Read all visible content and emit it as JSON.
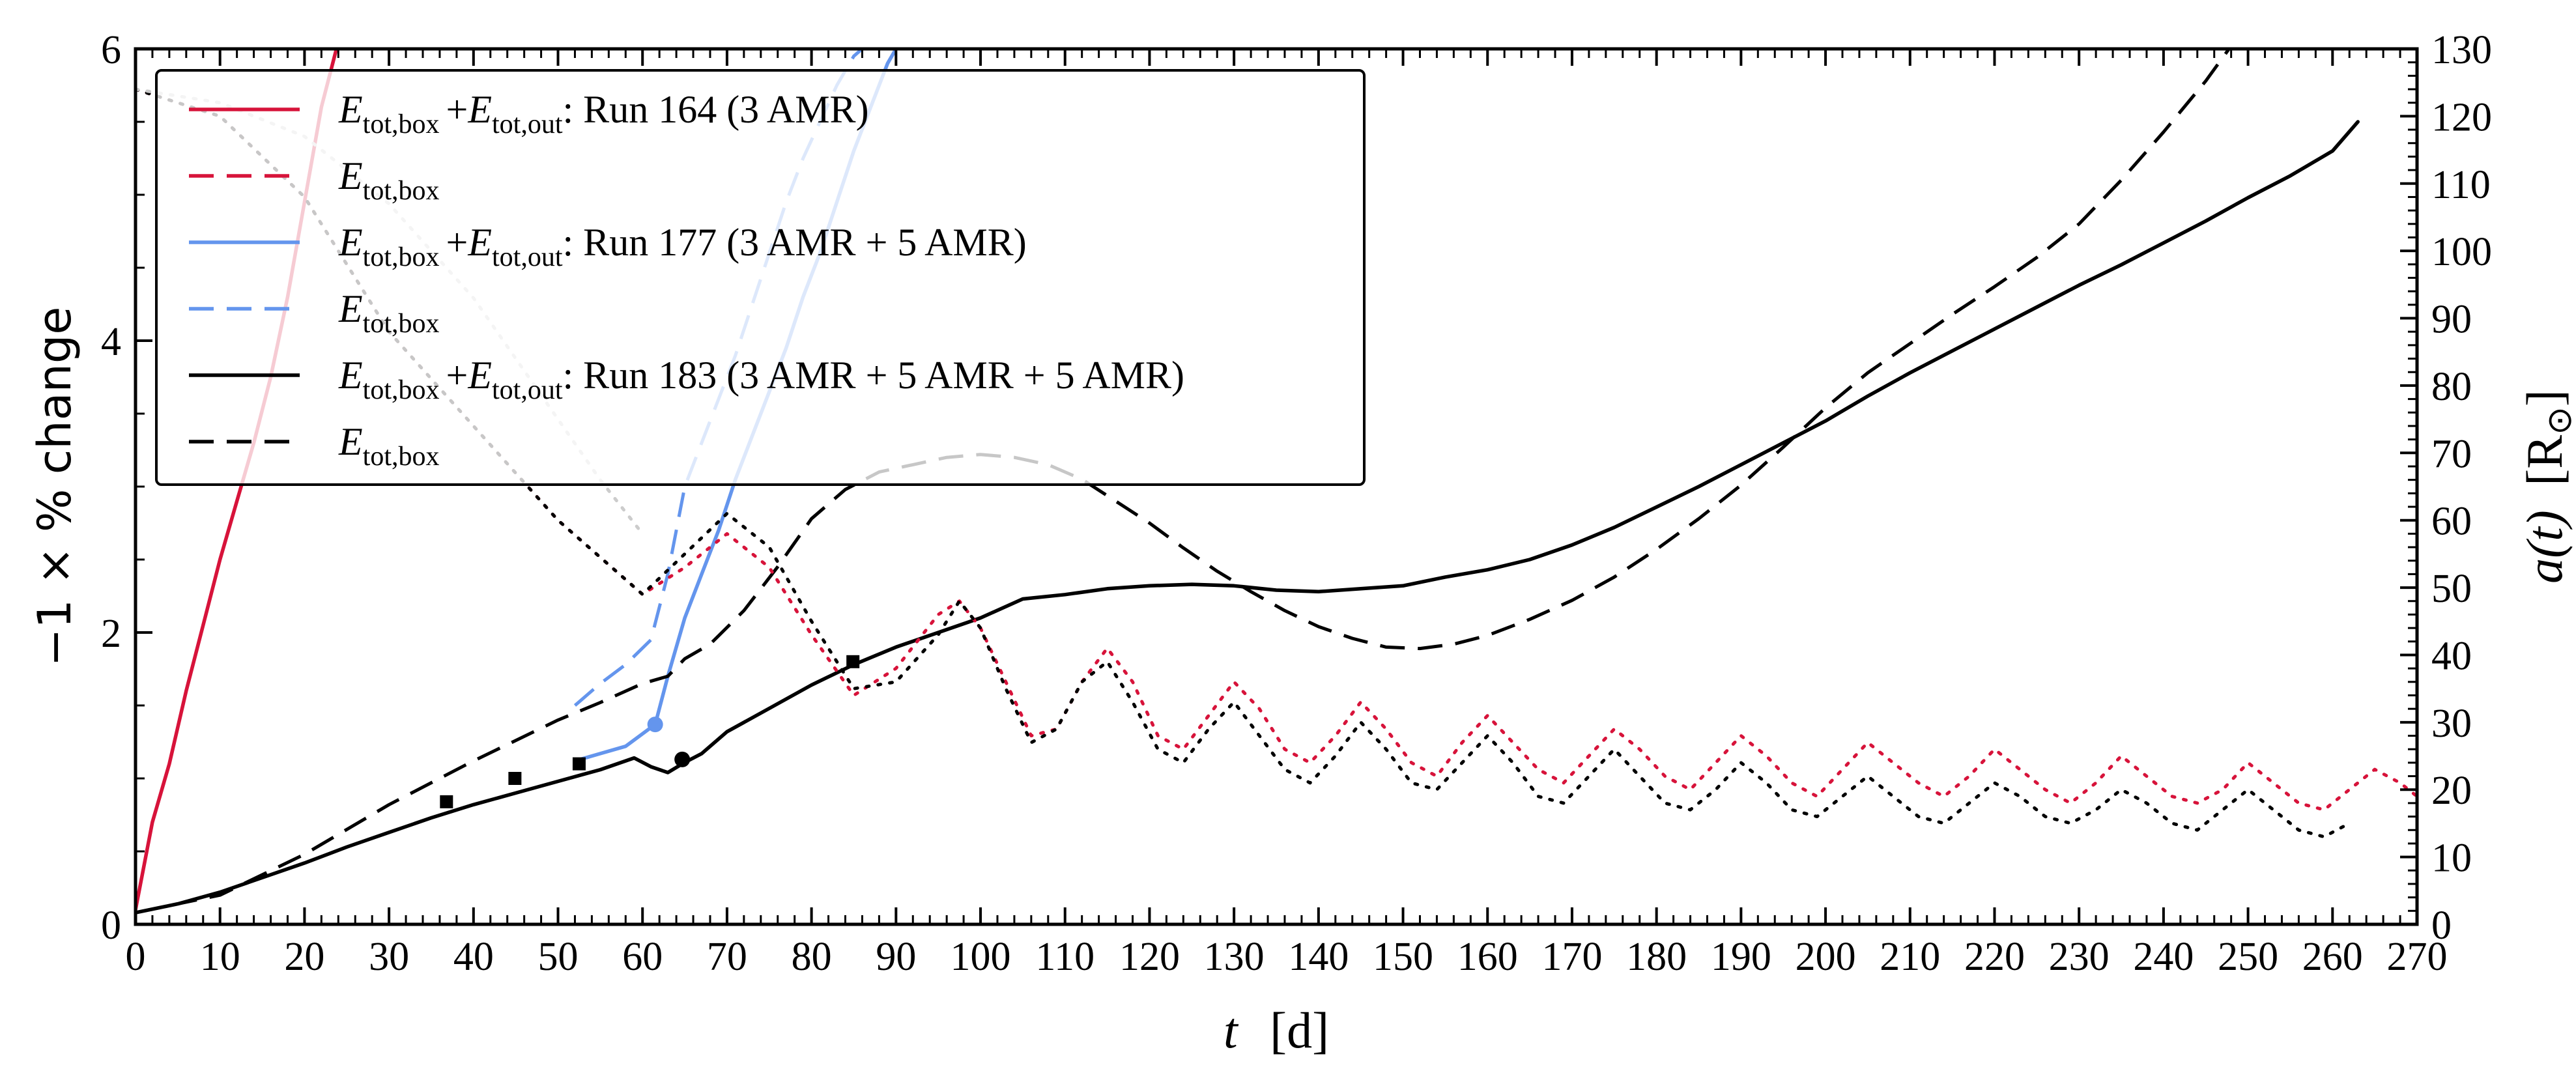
{
  "chart_data": {
    "type": "line",
    "xlabel_var": "t",
    "xlabel_unit": "[d]",
    "ylabel_left": "−1 × % change",
    "ylabel_right_var": "a(t)",
    "ylabel_right_unit": "[R",
    "ylabel_right_unit_symbol": "⊙",
    "ylabel_right_unit_close": "]",
    "xlim": [
      0,
      270
    ],
    "ylim_left": [
      0,
      6
    ],
    "ylim_right": [
      0,
      130
    ],
    "x_ticks": [
      "0",
      "10",
      "20",
      "30",
      "40",
      "50",
      "60",
      "70",
      "80",
      "90",
      "100",
      "110",
      "120",
      "130",
      "140",
      "150",
      "160",
      "170",
      "180",
      "190",
      "200",
      "210",
      "220",
      "230",
      "240",
      "250",
      "260",
      "270"
    ],
    "y_left_ticks": [
      "0",
      "2",
      "4",
      "6"
    ],
    "y_right_ticks": [
      "0",
      "10",
      "20",
      "30",
      "40",
      "50",
      "60",
      "70",
      "80",
      "90",
      "100",
      "110",
      "120",
      "130"
    ],
    "legend": {
      "location": "upper left",
      "entries": [
        {
          "style": "solid",
          "color": "#d7133a",
          "term1": "E",
          "sub1": "tot,box",
          "plus": "+",
          "term2": "E",
          "sub2": "tot,out",
          "text": ": Run 164 (3 AMR)"
        },
        {
          "style": "dashed",
          "color": "#d7133a",
          "term1": "E",
          "sub1": "tot,box"
        },
        {
          "style": "solid",
          "color": "#6495ed",
          "term1": "E",
          "sub1": "tot,box",
          "plus": "+",
          "term2": "E",
          "sub2": "tot,out",
          "text": ": Run 177 (3 AMR + 5 AMR)"
        },
        {
          "style": "dashed",
          "color": "#6495ed",
          "term1": "E",
          "sub1": "tot,box"
        },
        {
          "style": "solid",
          "color": "#000000",
          "term1": "E",
          "sub1": "tot,box",
          "plus": "+",
          "term2": "E",
          "sub2": "tot,out",
          "text": ": Run 183 (3 AMR + 5 AMR + 5 AMR)"
        },
        {
          "style": "dashed",
          "color": "#000000",
          "term1": "E",
          "sub1": "tot,box"
        }
      ]
    },
    "series": [
      {
        "axis": "left",
        "color": "#d7133a",
        "style": "solid",
        "x": [
          0,
          2,
          4,
          6,
          8,
          10,
          12,
          14,
          16,
          18,
          20,
          22,
          24
        ],
        "y": [
          0.1,
          0.7,
          1.1,
          1.6,
          2.05,
          2.5,
          2.9,
          3.3,
          3.75,
          4.3,
          4.95,
          5.6,
          6.05
        ]
      },
      {
        "axis": "left",
        "color": "#d7133a",
        "style": "dashed",
        "x": [
          0,
          2,
          4,
          6,
          8,
          10,
          12,
          14,
          16,
          18,
          20,
          22,
          24
        ],
        "y": [
          0.1,
          0.7,
          1.1,
          1.6,
          2.05,
          2.5,
          2.9,
          3.3,
          3.75,
          4.3,
          4.95,
          5.6,
          6.05
        ]
      },
      {
        "axis": "left",
        "color": "#6495ed",
        "style": "solid",
        "x": [
          52,
          55,
          58,
          61.5,
          63,
          65,
          67,
          69,
          71,
          73,
          75,
          77,
          79,
          81,
          83,
          85,
          87,
          89,
          91
        ],
        "y": [
          1.12,
          1.17,
          1.22,
          1.37,
          1.7,
          2.1,
          2.4,
          2.7,
          3.05,
          3.35,
          3.65,
          3.95,
          4.3,
          4.6,
          4.95,
          5.3,
          5.6,
          5.9,
          6.1
        ]
      },
      {
        "axis": "left",
        "color": "#6495ed",
        "style": "dashed",
        "x": [
          52,
          55,
          58,
          61,
          63,
          65,
          67,
          69,
          71,
          73,
          75,
          77,
          79,
          81,
          83,
          85,
          87,
          88
        ],
        "y": [
          1.5,
          1.65,
          1.78,
          1.95,
          2.4,
          3.0,
          3.3,
          3.6,
          3.9,
          4.25,
          4.6,
          4.95,
          5.25,
          5.5,
          5.75,
          5.95,
          6.05,
          6.1
        ]
      },
      {
        "axis": "left",
        "color": "#000000",
        "style": "solid",
        "x": [
          0,
          5,
          10,
          15,
          20,
          25,
          30,
          35,
          40,
          45,
          50,
          55,
          59,
          61,
          63,
          65,
          67,
          70,
          75,
          80,
          85,
          90,
          95,
          100,
          105,
          110,
          115,
          120,
          125,
          130,
          135,
          140,
          145,
          150,
          155,
          160,
          165,
          170,
          175,
          180,
          185,
          190,
          195,
          200,
          205,
          210,
          215,
          220,
          225,
          230,
          235,
          240,
          245,
          250,
          255,
          260,
          263
        ],
        "y": [
          0.08,
          0.14,
          0.22,
          0.32,
          0.42,
          0.53,
          0.63,
          0.73,
          0.82,
          0.9,
          0.98,
          1.06,
          1.14,
          1.08,
          1.04,
          1.11,
          1.17,
          1.32,
          1.48,
          1.64,
          1.78,
          1.9,
          2.0,
          2.1,
          2.23,
          2.26,
          2.3,
          2.32,
          2.33,
          2.32,
          2.29,
          2.28,
          2.3,
          2.32,
          2.38,
          2.43,
          2.5,
          2.6,
          2.72,
          2.86,
          3.0,
          3.15,
          3.3,
          3.45,
          3.62,
          3.78,
          3.93,
          4.08,
          4.23,
          4.38,
          4.52,
          4.67,
          4.82,
          4.98,
          5.13,
          5.3,
          5.5
        ]
      },
      {
        "axis": "left",
        "color": "#000000",
        "style": "dashed",
        "x": [
          0,
          10,
          20,
          30,
          40,
          50,
          55,
          60,
          63,
          65,
          68,
          72,
          76,
          80,
          84,
          88,
          92,
          96,
          100,
          104,
          108,
          112,
          116,
          120,
          124,
          128,
          132,
          136,
          140,
          144,
          148,
          152,
          156,
          160,
          165,
          170,
          175,
          180,
          185,
          190,
          195,
          200,
          205,
          210,
          215,
          220,
          225,
          230,
          235,
          240,
          245,
          248
        ],
        "y": [
          0.08,
          0.2,
          0.48,
          0.82,
          1.12,
          1.4,
          1.52,
          1.65,
          1.7,
          1.82,
          1.92,
          2.15,
          2.45,
          2.78,
          2.98,
          3.1,
          3.15,
          3.2,
          3.22,
          3.2,
          3.15,
          3.05,
          2.9,
          2.75,
          2.58,
          2.42,
          2.28,
          2.15,
          2.04,
          1.96,
          1.9,
          1.89,
          1.92,
          1.98,
          2.09,
          2.22,
          2.38,
          2.57,
          2.78,
          3.01,
          3.27,
          3.54,
          3.78,
          3.98,
          4.18,
          4.37,
          4.57,
          4.8,
          5.1,
          5.43,
          5.78,
          6.02
        ]
      },
      {
        "axis": "right",
        "color": "#d7133a",
        "style": "dotted",
        "x": [
          0,
          10,
          20,
          30,
          40,
          50,
          60,
          65,
          70,
          75,
          80,
          85,
          90,
          95,
          97.5,
          100,
          103,
          106,
          109,
          112,
          115,
          118,
          121,
          124,
          127,
          130,
          133,
          136,
          139,
          142,
          145,
          148,
          151,
          154,
          157,
          160,
          163,
          166,
          169,
          172,
          175,
          178,
          181,
          184,
          187,
          190,
          193,
          196,
          199,
          202,
          205,
          208,
          211,
          214,
          217,
          220,
          223,
          226,
          229,
          232,
          235,
          238,
          241,
          244,
          247,
          250,
          253,
          256,
          259,
          262,
          265,
          268,
          270
        ],
        "y": [
          124,
          120,
          108,
          88,
          74,
          60,
          49,
          53,
          58,
          53,
          43,
          34,
          38,
          46,
          48,
          44,
          36,
          28,
          29,
          36,
          41,
          36,
          28,
          26,
          31,
          36,
          32,
          26,
          24,
          28,
          33,
          29,
          24,
          22,
          27,
          31,
          27,
          23,
          21,
          25,
          29,
          26,
          22,
          20,
          24,
          28,
          25,
          21,
          19,
          23,
          27,
          24,
          21,
          19,
          22,
          26,
          23,
          20,
          18,
          21,
          25,
          22,
          19,
          18,
          20,
          24,
          21,
          18,
          17,
          20,
          23,
          21,
          19
        ]
      },
      {
        "axis": "right",
        "color": "#000000",
        "style": "dotted",
        "x": [
          0,
          10,
          20,
          30,
          40,
          50,
          60,
          65,
          70,
          75,
          80,
          85,
          90,
          95,
          97.5,
          100,
          103,
          106,
          109,
          112,
          115,
          118,
          121,
          124,
          127,
          130,
          133,
          136,
          139,
          142,
          145,
          148,
          151,
          154,
          157,
          160,
          163,
          166,
          169,
          172,
          175,
          178,
          181,
          184,
          187,
          190,
          193,
          196,
          199,
          202,
          205,
          208,
          211,
          214,
          217,
          220,
          223,
          226,
          229,
          232,
          235,
          238,
          241,
          244,
          247,
          250,
          253,
          256,
          259,
          262
        ],
        "y": [
          124,
          120,
          108,
          88,
          74,
          60,
          49,
          55,
          61,
          56,
          45,
          35,
          36,
          43,
          48,
          44,
          35,
          27,
          29,
          36,
          39,
          33,
          26,
          24,
          29,
          33,
          28,
          23,
          21,
          25,
          30,
          26,
          21,
          20,
          24,
          28,
          24,
          19,
          18,
          22,
          26,
          22,
          18,
          17,
          20,
          24,
          21,
          17,
          16,
          19,
          22,
          19,
          16,
          15,
          18,
          21,
          19,
          16,
          15,
          17,
          20,
          18,
          15,
          14,
          17,
          20,
          17,
          14,
          13,
          15
        ]
      },
      {
        "axis": "right",
        "color": "#cccccc",
        "style": "dotted-faint",
        "x": [
          0,
          10,
          20,
          30,
          40,
          50,
          55,
          60
        ],
        "y": [
          124,
          122,
          117,
          107,
          93,
          75,
          66,
          58
        ]
      }
    ],
    "markers": [
      {
        "x": 36.8,
        "y": 0.84,
        "shape": "square",
        "color": "#000000"
      },
      {
        "x": 44.9,
        "y": 1.0,
        "shape": "square",
        "color": "#000000"
      },
      {
        "x": 52.5,
        "y": 1.1,
        "shape": "square",
        "color": "#000000"
      },
      {
        "x": 64.7,
        "y": 1.13,
        "shape": "circle",
        "color": "#000000"
      },
      {
        "x": 84.9,
        "y": 1.8,
        "shape": "square",
        "color": "#000000"
      },
      {
        "x": 61.5,
        "y": 1.37,
        "shape": "circle",
        "color": "#6495ed"
      }
    ]
  }
}
